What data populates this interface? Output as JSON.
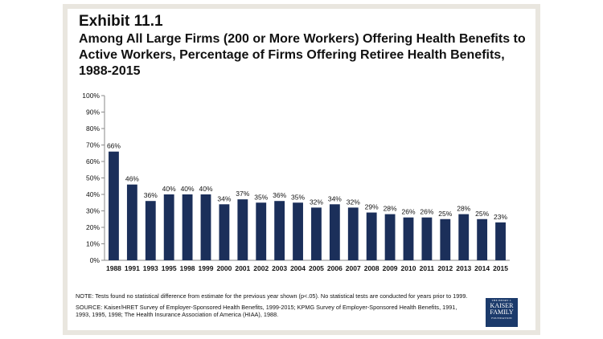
{
  "header": {
    "exhibit": "Exhibit 11.1",
    "title": "Among All Large Firms (200 or More Workers) Offering Health Benefits to Active Workers, Percentage of Firms Offering Retiree Health Benefits, 1988-2015"
  },
  "chart_data": {
    "type": "bar",
    "categories": [
      "1988",
      "1991",
      "1993",
      "1995",
      "1998",
      "1999",
      "2000",
      "2001",
      "2002",
      "2003",
      "2004",
      "2005",
      "2006",
      "2007",
      "2008",
      "2009",
      "2010",
      "2011",
      "2012",
      "2013",
      "2014",
      "2015"
    ],
    "values": [
      66,
      46,
      36,
      40,
      40,
      40,
      34,
      37,
      35,
      36,
      35,
      32,
      34,
      32,
      29,
      28,
      26,
      26,
      25,
      28,
      25,
      23
    ],
    "value_labels": [
      "66%",
      "46%",
      "36%",
      "40%",
      "40%",
      "40%",
      "34%",
      "37%",
      "35%",
      "36%",
      "35%",
      "32%",
      "34%",
      "32%",
      "29%",
      "28%",
      "26%",
      "26%",
      "25%",
      "28%",
      "25%",
      "23%"
    ],
    "yticks": [
      "0%",
      "10%",
      "20%",
      "30%",
      "40%",
      "50%",
      "60%",
      "70%",
      "80%",
      "90%",
      "100%"
    ],
    "ylim": [
      0,
      100
    ],
    "xlabel": "",
    "ylabel": "",
    "grid": false,
    "bar_color": "#1b2f5a"
  },
  "notes": {
    "note": "NOTE: Tests found no statistical difference from estimate for the previous year shown (p<.05).  No statistical tests are conducted for years prior to 1999.",
    "source": "SOURCE: Kaiser/HRET Survey of Employer-Sponsored Health Benefits, 1999-2015; KPMG Survey of Employer-Sponsored Health Benefits, 1991, 1993, 1995, 1998; The Health Insurance Association of America (HIAA), 1988."
  },
  "logo": {
    "line1": "THE HENRY J.",
    "line2": "KAISER",
    "line3": "FAMILY",
    "line4": "FOUNDATION"
  }
}
